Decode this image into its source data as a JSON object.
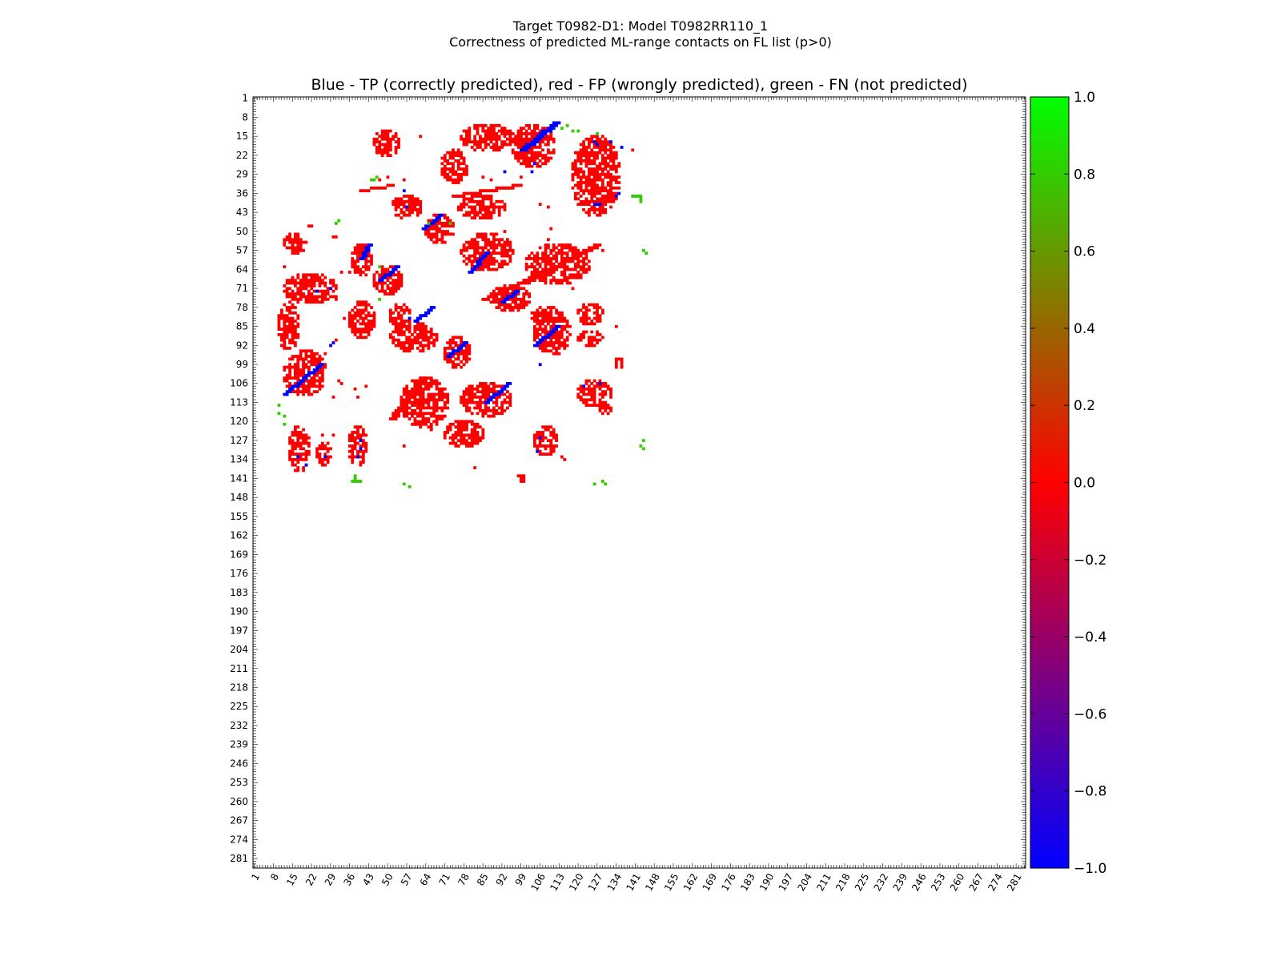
{
  "figure": {
    "title_line1": "Target T0982-D1: Model T0982RR110_1",
    "title_line2": "Correctness of predicted ML-range contacts on FL list (p>0)",
    "plot_title": "Blue - TP (correctly predicted), red - FP (wrongly predicted), green - FN (not predicted)"
  },
  "chart_data": {
    "type": "heatmap",
    "x_range": [
      1,
      284
    ],
    "y_range": [
      1,
      284
    ],
    "y_inverted": true,
    "x_ticks": [
      1,
      8,
      15,
      22,
      29,
      36,
      43,
      50,
      57,
      64,
      71,
      78,
      85,
      92,
      99,
      106,
      113,
      120,
      127,
      134,
      141,
      148,
      155,
      162,
      169,
      176,
      183,
      190,
      197,
      204,
      211,
      218,
      225,
      232,
      239,
      246,
      253,
      260,
      267,
      274,
      281
    ],
    "y_ticks": [
      1,
      8,
      15,
      22,
      29,
      36,
      43,
      50,
      57,
      64,
      71,
      78,
      85,
      92,
      99,
      106,
      113,
      120,
      127,
      134,
      141,
      148,
      155,
      162,
      169,
      176,
      183,
      190,
      197,
      204,
      211,
      218,
      225,
      232,
      239,
      246,
      253,
      260,
      267,
      274,
      281
    ],
    "colorbar": {
      "min": -1.0,
      "max": 1.0,
      "ticks": [
        "1.0",
        "0.8",
        "0.6",
        "0.4",
        "0.2",
        "0.0",
        "−0.2",
        "−0.4",
        "−0.6",
        "−0.8",
        "−1.0"
      ],
      "tick_values": [
        1.0,
        0.8,
        0.6,
        0.4,
        0.2,
        0.0,
        -0.2,
        -0.4,
        -0.6,
        -0.8,
        -1.0
      ],
      "colors": [
        "#0000ff",
        "#ff0000",
        "#00ff00"
      ]
    },
    "category_colors": {
      "TP": "#0000ff",
      "FP": "#ff0000",
      "FN": "#33cc00"
    },
    "regions": [
      {
        "cat": "FP",
        "x": [
          45,
          54
        ],
        "y": [
          13,
          22
        ]
      },
      {
        "cat": "FP",
        "x": [
          77,
          96
        ],
        "y": [
          11,
          20
        ]
      },
      {
        "cat": "FP",
        "x": [
          96,
          111
        ],
        "y": [
          11,
          26
        ]
      },
      {
        "cat": "FP",
        "x": [
          70,
          79
        ],
        "y": [
          20,
          32
        ]
      },
      {
        "cat": "FP",
        "x": [
          118,
          135
        ],
        "y": [
          15,
          44
        ]
      },
      {
        "cat": "FP",
        "x": [
          52,
          62
        ],
        "y": [
          37,
          45
        ]
      },
      {
        "cat": "FP",
        "x": [
          76,
          93
        ],
        "y": [
          37,
          45
        ]
      },
      {
        "cat": "FP",
        "x": [
          64,
          74
        ],
        "y": [
          44,
          54
        ]
      },
      {
        "cat": "FP",
        "x": [
          12,
          20
        ],
        "y": [
          51,
          58
        ]
      },
      {
        "cat": "FP",
        "x": [
          77,
          96
        ],
        "y": [
          51,
          64
        ]
      },
      {
        "cat": "FP",
        "x": [
          101,
          124
        ],
        "y": [
          55,
          69
        ]
      },
      {
        "cat": "FP",
        "x": [
          37,
          44
        ],
        "y": [
          55,
          66
        ]
      },
      {
        "cat": "FP",
        "x": [
          45,
          55
        ],
        "y": [
          63,
          73
        ]
      },
      {
        "cat": "FP",
        "x": [
          12,
          31
        ],
        "y": [
          66,
          76
        ]
      },
      {
        "cat": "FP",
        "x": [
          88,
          102
        ],
        "y": [
          70,
          79
        ]
      },
      {
        "cat": "FP",
        "x": [
          10,
          17
        ],
        "y": [
          76,
          94
        ]
      },
      {
        "cat": "FP",
        "x": [
          36,
          45
        ],
        "y": [
          76,
          89
        ]
      },
      {
        "cat": "FP",
        "x": [
          51,
          58
        ],
        "y": [
          77,
          85
        ]
      },
      {
        "cat": "FP",
        "x": [
          51,
          68
        ],
        "y": [
          84,
          94
        ]
      },
      {
        "cat": "FP",
        "x": [
          104,
          117
        ],
        "y": [
          80,
          95
        ]
      },
      {
        "cat": "FP",
        "x": [
          103,
          114
        ],
        "y": [
          78,
          84
        ]
      },
      {
        "cat": "FP",
        "x": [
          120,
          129
        ],
        "y": [
          77,
          84
        ]
      },
      {
        "cat": "FP",
        "x": [
          120,
          129
        ],
        "y": [
          87,
          92
        ]
      },
      {
        "cat": "FP",
        "x": [
          71,
          80
        ],
        "y": [
          89,
          100
        ]
      },
      {
        "cat": "FP",
        "x": [
          12,
          27
        ],
        "y": [
          94,
          110
        ]
      },
      {
        "cat": "FP",
        "x": [
          55,
          72
        ],
        "y": [
          104,
          122
        ]
      },
      {
        "cat": "FP",
        "x": [
          77,
          95
        ],
        "y": [
          106,
          118
        ]
      },
      {
        "cat": "FP",
        "x": [
          71,
          85
        ],
        "y": [
          120,
          129
        ]
      },
      {
        "cat": "FP",
        "x": [
          120,
          132
        ],
        "y": [
          105,
          114
        ]
      },
      {
        "cat": "FP",
        "x": [
          14,
          21
        ],
        "y": [
          122,
          138
        ]
      },
      {
        "cat": "FP",
        "x": [
          36,
          42
        ],
        "y": [
          122,
          136
        ]
      },
      {
        "cat": "FP",
        "x": [
          104,
          112
        ],
        "y": [
          122,
          132
        ]
      },
      {
        "cat": "FP",
        "x": [
          24,
          29
        ],
        "y": [
          128,
          136
        ]
      },
      {
        "cat": "FP",
        "x": [
          134,
          136
        ],
        "y": [
          97,
          100
        ]
      },
      {
        "cat": "FP",
        "x": [
          98,
          100
        ],
        "y": [
          140,
          142
        ]
      },
      {
        "cat": "FP",
        "x": [
          128,
          132
        ],
        "y": [
          114,
          117
        ]
      }
    ],
    "diagonals": [
      {
        "cat": "TP",
        "from": [
          99,
          20
        ],
        "to": [
          111,
          10
        ],
        "width": 3
      },
      {
        "cat": "TP",
        "from": [
          63,
          49
        ],
        "to": [
          69,
          44
        ],
        "width": 2
      },
      {
        "cat": "TP",
        "from": [
          43,
          55
        ],
        "to": [
          40,
          60
        ],
        "width": 2
      },
      {
        "cat": "TP",
        "from": [
          47,
          68
        ],
        "to": [
          53,
          63
        ],
        "width": 2
      },
      {
        "cat": "TP",
        "from": [
          60,
          83
        ],
        "to": [
          66,
          78
        ],
        "width": 2
      },
      {
        "cat": "TP",
        "from": [
          80,
          65
        ],
        "to": [
          86,
          58
        ],
        "width": 2
      },
      {
        "cat": "TP",
        "from": [
          92,
          76
        ],
        "to": [
          97,
          72
        ],
        "width": 2
      },
      {
        "cat": "TP",
        "from": [
          104,
          92
        ],
        "to": [
          112,
          85
        ],
        "width": 2
      },
      {
        "cat": "TP",
        "from": [
          72,
          96
        ],
        "to": [
          78,
          91
        ],
        "width": 2
      },
      {
        "cat": "TP",
        "from": [
          12,
          110
        ],
        "to": [
          25,
          99
        ],
        "width": 2
      },
      {
        "cat": "TP",
        "from": [
          86,
          113
        ],
        "to": [
          94,
          106
        ],
        "width": 2
      },
      {
        "cat": "FP",
        "from": [
          51,
          119
        ],
        "to": [
          62,
          104
        ],
        "width": 3
      },
      {
        "cat": "FP",
        "from": [
          100,
          69
        ],
        "to": [
          126,
          55
        ],
        "width": 3
      },
      {
        "cat": "FP",
        "from": [
          85,
          75
        ],
        "to": [
          103,
          67
        ],
        "width": 2
      },
      {
        "cat": "FP",
        "from": [
          74,
          37
        ],
        "to": [
          98,
          33
        ],
        "width": 2
      },
      {
        "cat": "FP",
        "from": [
          40,
          35
        ],
        "to": [
          52,
          33
        ],
        "width": 1
      }
    ],
    "points": [
      {
        "cat": "FN",
        "x": 44,
        "y": 31
      },
      {
        "cat": "FN",
        "x": 45,
        "y": 31
      },
      {
        "cat": "FN",
        "x": 46,
        "y": 30
      },
      {
        "cat": "FN",
        "x": 140,
        "y": 37
      },
      {
        "cat": "FN",
        "x": 141,
        "y": 37
      },
      {
        "cat": "FN",
        "x": 142,
        "y": 37
      },
      {
        "cat": "FN",
        "x": 143,
        "y": 37
      },
      {
        "cat": "FN",
        "x": 143,
        "y": 38
      },
      {
        "cat": "FN",
        "x": 143,
        "y": 39
      },
      {
        "cat": "FN",
        "x": 114,
        "y": 12
      },
      {
        "cat": "FN",
        "x": 116,
        "y": 11
      },
      {
        "cat": "FN",
        "x": 118,
        "y": 13
      },
      {
        "cat": "FN",
        "x": 120,
        "y": 13
      },
      {
        "cat": "FN",
        "x": 127,
        "y": 14
      },
      {
        "cat": "FN",
        "x": 144,
        "y": 57
      },
      {
        "cat": "FN",
        "x": 145,
        "y": 58
      },
      {
        "cat": "FN",
        "x": 31,
        "y": 47
      },
      {
        "cat": "FN",
        "x": 32,
        "y": 46
      },
      {
        "cat": "FN",
        "x": 10,
        "y": 114
      },
      {
        "cat": "FN",
        "x": 10,
        "y": 117
      },
      {
        "cat": "FN",
        "x": 12,
        "y": 118
      },
      {
        "cat": "FN",
        "x": 12,
        "y": 121
      },
      {
        "cat": "FN",
        "x": 37,
        "y": 142
      },
      {
        "cat": "FN",
        "x": 38,
        "y": 142
      },
      {
        "cat": "FN",
        "x": 39,
        "y": 142
      },
      {
        "cat": "FN",
        "x": 40,
        "y": 142
      },
      {
        "cat": "FN",
        "x": 38,
        "y": 140
      },
      {
        "cat": "FN",
        "x": 38,
        "y": 141
      },
      {
        "cat": "FN",
        "x": 56,
        "y": 143
      },
      {
        "cat": "FN",
        "x": 58,
        "y": 144
      },
      {
        "cat": "FN",
        "x": 126,
        "y": 143
      },
      {
        "cat": "FN",
        "x": 129,
        "y": 142
      },
      {
        "cat": "FN",
        "x": 130,
        "y": 143
      },
      {
        "cat": "FN",
        "x": 143,
        "y": 129
      },
      {
        "cat": "FN",
        "x": 144,
        "y": 130
      },
      {
        "cat": "FN",
        "x": 144,
        "y": 127
      },
      {
        "cat": "FN",
        "x": 65,
        "y": 47
      },
      {
        "cat": "FN",
        "x": 73,
        "y": 47
      },
      {
        "cat": "FN",
        "x": 47,
        "y": 63
      },
      {
        "cat": "FN",
        "x": 47,
        "y": 75
      },
      {
        "cat": "TP",
        "x": 126,
        "y": 17
      },
      {
        "cat": "TP",
        "x": 127,
        "y": 18
      },
      {
        "cat": "TP",
        "x": 132,
        "y": 17
      },
      {
        "cat": "TP",
        "x": 136,
        "y": 19
      },
      {
        "cat": "TP",
        "x": 126,
        "y": 40
      },
      {
        "cat": "TP",
        "x": 127,
        "y": 40
      },
      {
        "cat": "TP",
        "x": 128,
        "y": 40
      },
      {
        "cat": "TP",
        "x": 134,
        "y": 37
      },
      {
        "cat": "TP",
        "x": 135,
        "y": 36
      },
      {
        "cat": "TP",
        "x": 103,
        "y": 28
      },
      {
        "cat": "TP",
        "x": 93,
        "y": 28
      },
      {
        "cat": "TP",
        "x": 104,
        "y": 25
      },
      {
        "cat": "TP",
        "x": 56,
        "y": 35
      },
      {
        "cat": "TP",
        "x": 57,
        "y": 41
      },
      {
        "cat": "TP",
        "x": 24,
        "y": 72
      },
      {
        "cat": "TP",
        "x": 29,
        "y": 71
      },
      {
        "cat": "TP",
        "x": 29,
        "y": 92
      },
      {
        "cat": "TP",
        "x": 30,
        "y": 91
      },
      {
        "cat": "TP",
        "x": 40,
        "y": 127
      },
      {
        "cat": "TP",
        "x": 40,
        "y": 130
      },
      {
        "cat": "TP",
        "x": 39,
        "y": 133
      },
      {
        "cat": "TP",
        "x": 17,
        "y": 133
      },
      {
        "cat": "TP",
        "x": 20,
        "y": 136
      },
      {
        "cat": "TP",
        "x": 27,
        "y": 133
      },
      {
        "cat": "TP",
        "x": 105,
        "y": 131
      },
      {
        "cat": "TP",
        "x": 106,
        "y": 126
      },
      {
        "cat": "TP",
        "x": 122,
        "y": 107
      },
      {
        "cat": "TP",
        "x": 128,
        "y": 106
      },
      {
        "cat": "TP",
        "x": 58,
        "y": 82
      },
      {
        "cat": "TP",
        "x": 106,
        "y": 99
      },
      {
        "cat": "FP",
        "x": 47,
        "y": 31
      },
      {
        "cat": "FP",
        "x": 50,
        "y": 30
      },
      {
        "cat": "FP",
        "x": 56,
        "y": 31
      },
      {
        "cat": "FP",
        "x": 55,
        "y": 39
      },
      {
        "cat": "FP",
        "x": 62,
        "y": 15
      },
      {
        "cat": "FP",
        "x": 85,
        "y": 30
      },
      {
        "cat": "FP",
        "x": 88,
        "y": 31
      },
      {
        "cat": "FP",
        "x": 99,
        "y": 30
      },
      {
        "cat": "FP",
        "x": 106,
        "y": 40
      },
      {
        "cat": "FP",
        "x": 109,
        "y": 41
      },
      {
        "cat": "FP",
        "x": 21,
        "y": 48
      },
      {
        "cat": "FP",
        "x": 22,
        "y": 48
      },
      {
        "cat": "FP",
        "x": 30,
        "y": 52
      },
      {
        "cat": "FP",
        "x": 31,
        "y": 52
      },
      {
        "cat": "FP",
        "x": 12,
        "y": 63
      },
      {
        "cat": "FP",
        "x": 33,
        "y": 65
      },
      {
        "cat": "FP",
        "x": 36,
        "y": 65
      },
      {
        "cat": "FP",
        "x": 31,
        "y": 74
      },
      {
        "cat": "FP",
        "x": 31,
        "y": 75
      },
      {
        "cat": "FP",
        "x": 34,
        "y": 82
      },
      {
        "cat": "FP",
        "x": 31,
        "y": 90
      },
      {
        "cat": "FP",
        "x": 27,
        "y": 95
      },
      {
        "cat": "FP",
        "x": 32,
        "y": 105
      },
      {
        "cat": "FP",
        "x": 33,
        "y": 106
      },
      {
        "cat": "FP",
        "x": 30,
        "y": 111
      },
      {
        "cat": "FP",
        "x": 38,
        "y": 108
      },
      {
        "cat": "FP",
        "x": 39,
        "y": 111
      },
      {
        "cat": "FP",
        "x": 42,
        "y": 107
      },
      {
        "cat": "FP",
        "x": 26,
        "y": 125
      },
      {
        "cat": "FP",
        "x": 30,
        "y": 125
      },
      {
        "cat": "FP",
        "x": 56,
        "y": 129
      },
      {
        "cat": "FP",
        "x": 60,
        "y": 121
      },
      {
        "cat": "FP",
        "x": 66,
        "y": 123
      },
      {
        "cat": "FP",
        "x": 82,
        "y": 137
      },
      {
        "cat": "FP",
        "x": 104,
        "y": 126
      },
      {
        "cat": "FP",
        "x": 114,
        "y": 133
      },
      {
        "cat": "FP",
        "x": 115,
        "y": 134
      },
      {
        "cat": "FP",
        "x": 93,
        "y": 50
      },
      {
        "cat": "FP",
        "x": 95,
        "y": 54
      },
      {
        "cat": "FP",
        "x": 109,
        "y": 53
      },
      {
        "cat": "FP",
        "x": 110,
        "y": 49
      },
      {
        "cat": "FP",
        "x": 122,
        "y": 64
      },
      {
        "cat": "FP",
        "x": 129,
        "y": 57
      },
      {
        "cat": "FP",
        "x": 118,
        "y": 71
      },
      {
        "cat": "FP",
        "x": 134,
        "y": 85
      },
      {
        "cat": "FP",
        "x": 127,
        "y": 29
      },
      {
        "cat": "FP",
        "x": 131,
        "y": 30
      },
      {
        "cat": "FP",
        "x": 133,
        "y": 30
      },
      {
        "cat": "FP",
        "x": 140,
        "y": 20
      }
    ]
  }
}
